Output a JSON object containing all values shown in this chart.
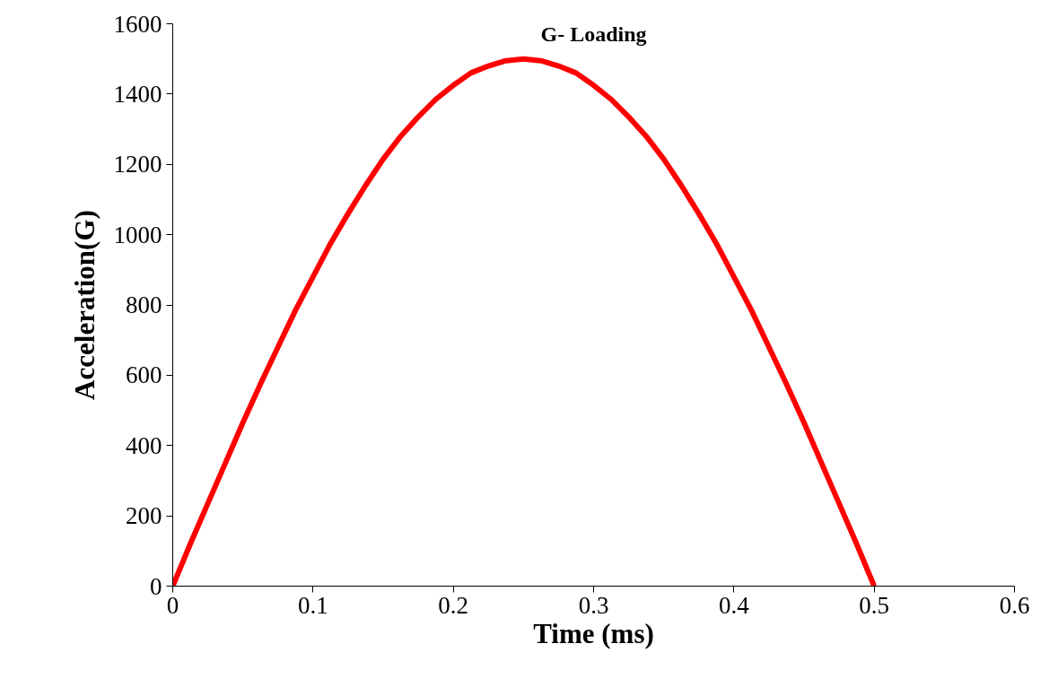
{
  "chart_data": {
    "type": "line",
    "title": "G- Loading",
    "xlabel": "Time (ms)",
    "ylabel": "Acceleration(G)",
    "x": [
      0,
      0.0125,
      0.025,
      0.0375,
      0.05,
      0.0625,
      0.075,
      0.0875,
      0.1,
      0.1125,
      0.125,
      0.1375,
      0.15,
      0.1625,
      0.175,
      0.1875,
      0.2,
      0.2125,
      0.225,
      0.2375,
      0.25,
      0.2625,
      0.275,
      0.2875,
      0.3,
      0.3125,
      0.325,
      0.3375,
      0.35,
      0.3625,
      0.375,
      0.3875,
      0.4,
      0.4125,
      0.425,
      0.4375,
      0.45,
      0.4625,
      0.475,
      0.4875,
      0.5
    ],
    "series": [
      {
        "color": "#ff0000",
        "values": [
          0,
          120,
          235,
          350,
          465,
          575,
          680,
          785,
          880,
          975,
          1060,
          1140,
          1215,
          1280,
          1335,
          1385,
          1425,
          1460,
          1480,
          1495,
          1500,
          1495,
          1480,
          1460,
          1425,
          1385,
          1335,
          1280,
          1215,
          1140,
          1060,
          975,
          880,
          785,
          680,
          575,
          465,
          350,
          235,
          120,
          0
        ]
      }
    ],
    "xlim": [
      0,
      0.6
    ],
    "xticks": [
      0,
      0.1,
      0.2,
      0.3,
      0.4,
      0.5,
      0.6
    ],
    "ylim": [
      0,
      1600
    ],
    "yticks": [
      0,
      200,
      400,
      600,
      800,
      1000,
      1200,
      1400,
      1600
    ],
    "grid": false,
    "marker": "none",
    "line_style": "solid"
  }
}
